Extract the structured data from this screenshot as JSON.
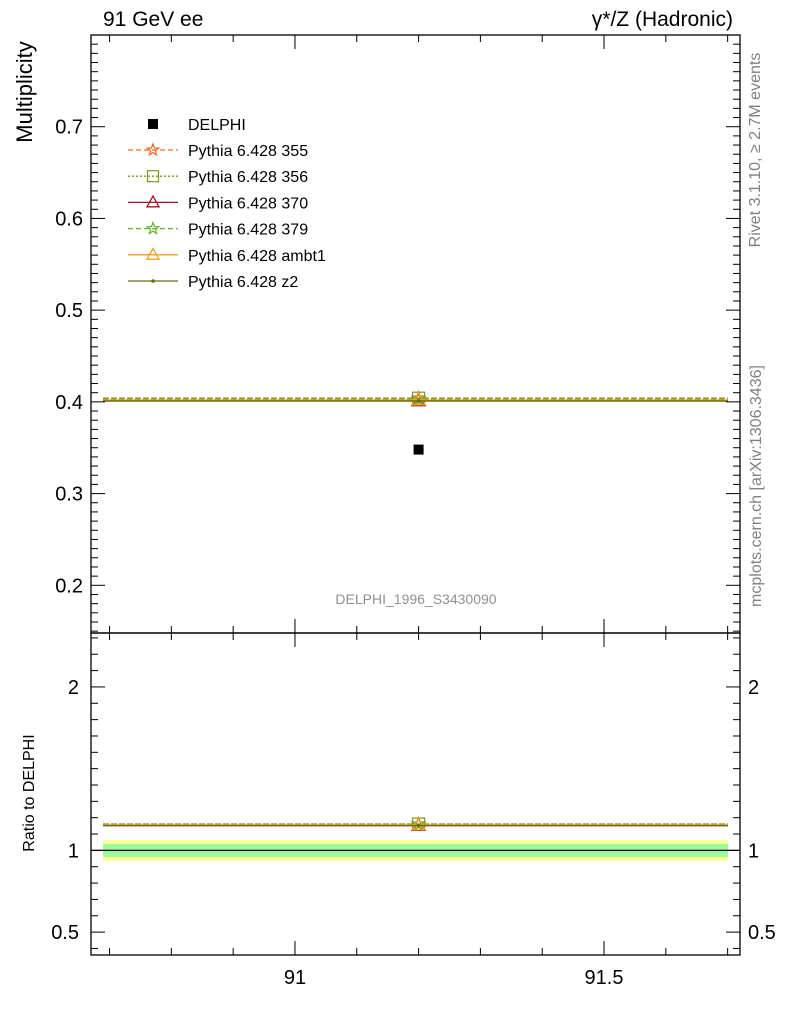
{
  "header": {
    "left": "91 GeV ee",
    "right": "γ*/Z (Hadronic)"
  },
  "side_labels": {
    "rivet": "Rivet 3.1.10, ≥ 2.7M events",
    "mcplots": "mcplots.cern.ch [arXiv:1306.3436]"
  },
  "analysis_id": "DELPHI_1996_S3430090",
  "chart_data": [
    {
      "type": "scatter",
      "panel": "main",
      "ylabel": "Multiplicity",
      "xlim": [
        90.67,
        91.72
      ],
      "ylim": [
        0.148,
        0.8
      ],
      "yticks": [
        0.2,
        0.3,
        0.4,
        0.5,
        0.6,
        0.7
      ],
      "ytick_labels": [
        "0.2",
        "0.3",
        "0.4",
        "0.5",
        "0.6",
        "0.7"
      ],
      "legend_position": "top-left",
      "data": {
        "name": "DELPHI",
        "x": [
          91.2
        ],
        "y": [
          0.348
        ],
        "color": "#000000",
        "marker": "filled-square"
      },
      "series": [
        {
          "name": "Pythia 6.428 355",
          "y": 0.404,
          "color": "#f26522",
          "style": "dashed",
          "marker": "star"
        },
        {
          "name": "Pythia 6.428 356",
          "y": 0.404,
          "color": "#7a9a1e",
          "style": "dotted",
          "marker": "open-square"
        },
        {
          "name": "Pythia 6.428 370",
          "y": 0.401,
          "color": "#a0122a",
          "style": "solid",
          "marker": "open-triangle"
        },
        {
          "name": "Pythia 6.428 379",
          "y": 0.403,
          "color": "#6ab42d",
          "style": "dashed",
          "marker": "star"
        },
        {
          "name": "Pythia 6.428 ambt1",
          "y": 0.402,
          "color": "#f0a020",
          "style": "solid",
          "marker": "open-triangle"
        },
        {
          "name": "Pythia 6.428 z2",
          "y": 0.401,
          "color": "#6b6b10",
          "style": "solid",
          "marker": "dot"
        }
      ]
    },
    {
      "type": "line",
      "panel": "ratio",
      "ylabel": "Ratio to DELPHI",
      "xlim": [
        90.67,
        91.72
      ],
      "ylim": [
        0.36,
        2.33
      ],
      "yticks": [
        0.5,
        1,
        2
      ],
      "ytick_labels": [
        "0.5",
        "1",
        "2"
      ],
      "xticks": [
        91,
        91.5
      ],
      "xtick_labels": [
        "91",
        "91.5"
      ],
      "reference": 1.0,
      "bands": [
        {
          "lo": 0.935,
          "hi": 1.065,
          "color": "#ffff99"
        },
        {
          "lo": 0.96,
          "hi": 1.04,
          "color": "#99ff99"
        }
      ],
      "series": [
        {
          "name": "Pythia 6.428 355",
          "value": 1.161,
          "color": "#f26522",
          "style": "dashed",
          "marker": "star"
        },
        {
          "name": "Pythia 6.428 356",
          "value": 1.161,
          "color": "#7a9a1e",
          "style": "dotted",
          "marker": "open-square"
        },
        {
          "name": "Pythia 6.428 370",
          "value": 1.152,
          "color": "#a0122a",
          "style": "solid",
          "marker": "open-triangle"
        },
        {
          "name": "Pythia 6.428 379",
          "value": 1.158,
          "color": "#6ab42d",
          "style": "dashed",
          "marker": "star"
        },
        {
          "name": "Pythia 6.428 ambt1",
          "value": 1.155,
          "color": "#f0a020",
          "style": "solid",
          "marker": "open-triangle"
        },
        {
          "name": "Pythia 6.428 z2",
          "value": 1.152,
          "color": "#6b6b10",
          "style": "solid",
          "marker": "dot"
        }
      ]
    }
  ]
}
